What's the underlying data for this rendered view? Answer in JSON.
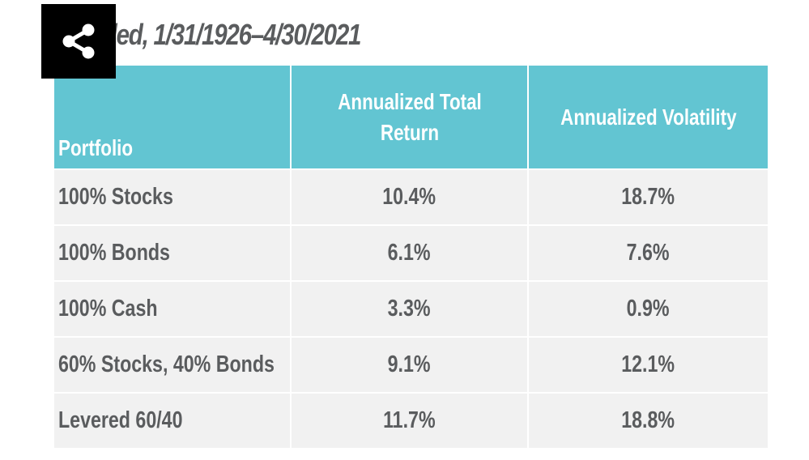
{
  "caption": "nded, 1/31/1926–4/30/2021",
  "share_icon": "share-icon",
  "colors": {
    "header_bg": "#62c5d2",
    "row_bg": "#f1f1f1",
    "text": "#5a5c5e",
    "share_bg": "#000000"
  },
  "table": {
    "headers": [
      "Portfolio",
      "Annualized Total Return",
      "Annualized Volatility"
    ],
    "rows": [
      [
        "100% Stocks",
        "10.4%",
        "18.7%"
      ],
      [
        "100% Bonds",
        "6.1%",
        "7.6%"
      ],
      [
        "100% Cash",
        "3.3%",
        "0.9%"
      ],
      [
        "60% Stocks, 40% Bonds",
        "9.1%",
        "12.1%"
      ],
      [
        "Levered 60/40",
        "11.7%",
        "18.8%"
      ]
    ]
  }
}
